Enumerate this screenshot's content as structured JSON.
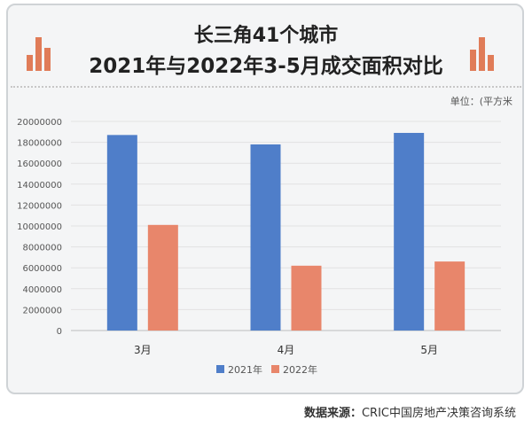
{
  "title_line1": "长三角41个城市",
  "title_line2": "2021年与2022年3-5月成交面积对比",
  "unit": "单位：(平方米",
  "source_label": "数据来源：",
  "source_text": "CRIC中国房地产决策咨询系统",
  "colors": {
    "s2021": "#4f7ec9",
    "s2022": "#e8866b",
    "deco": "#e07c58"
  },
  "chart_data": {
    "type": "bar",
    "categories": [
      "3月",
      "4月",
      "5月"
    ],
    "series": [
      {
        "name": "2021年",
        "values": [
          18700000,
          17800000,
          18900000
        ]
      },
      {
        "name": "2022年",
        "values": [
          10100000,
          6200000,
          6600000
        ]
      }
    ],
    "ylim": [
      0,
      20000000
    ],
    "yticks": [
      "0",
      "2000000",
      "4000000",
      "6000000",
      "8000000",
      "10000000",
      "12000000",
      "14000000",
      "16000000",
      "18000000",
      "20000000"
    ],
    "legend": "bottom"
  }
}
